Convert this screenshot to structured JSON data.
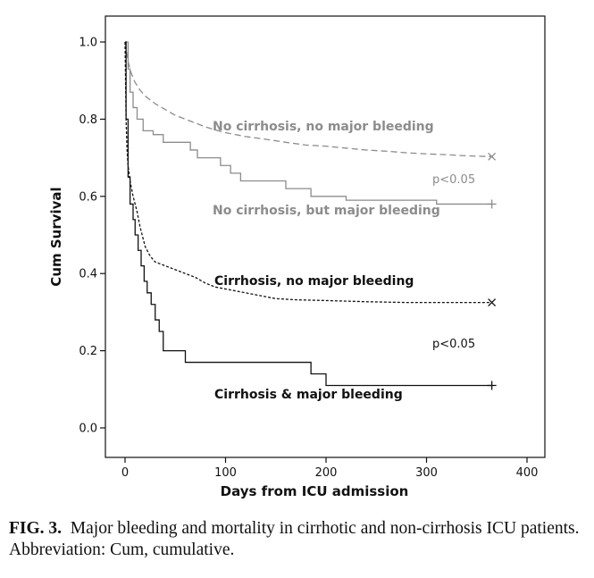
{
  "chart_data": {
    "type": "line",
    "ylabel": "Cum Survival",
    "xlabel": "Days from ICU admission",
    "xlim": [
      0,
      400
    ],
    "ylim": [
      0,
      1.0
    ],
    "x_ticks": [
      "0",
      "100",
      "200",
      "300",
      "400"
    ],
    "y_ticks": [
      "0.0",
      "0.2",
      "0.4",
      "0.6",
      "0.8",
      "1.0"
    ],
    "grid": false,
    "series": [
      {
        "name": "No cirrhosis, no major bleeding",
        "color": "#8c8c8c",
        "dash": "dashed",
        "end_marker": "×",
        "points": [
          [
            0,
            1.0
          ],
          [
            1,
            0.98
          ],
          [
            3,
            0.95
          ],
          [
            6,
            0.92
          ],
          [
            10,
            0.895
          ],
          [
            15,
            0.875
          ],
          [
            20,
            0.86
          ],
          [
            30,
            0.84
          ],
          [
            40,
            0.825
          ],
          [
            50,
            0.81
          ],
          [
            60,
            0.8
          ],
          [
            70,
            0.79
          ],
          [
            80,
            0.78
          ],
          [
            90,
            0.772
          ],
          [
            100,
            0.765
          ],
          [
            120,
            0.755
          ],
          [
            140,
            0.748
          ],
          [
            160,
            0.74
          ],
          [
            180,
            0.733
          ],
          [
            200,
            0.73
          ],
          [
            220,
            0.725
          ],
          [
            240,
            0.72
          ],
          [
            260,
            0.717
          ],
          [
            280,
            0.713
          ],
          [
            300,
            0.71
          ],
          [
            320,
            0.708
          ],
          [
            340,
            0.705
          ],
          [
            365,
            0.703
          ]
        ]
      },
      {
        "name": "No cirrhosis, but major bleeding",
        "color": "#8c8c8c",
        "dash": "solid",
        "end_marker": "+",
        "points": [
          [
            0,
            1.0
          ],
          [
            3,
            1.0
          ],
          [
            3,
            0.93
          ],
          [
            5,
            0.93
          ],
          [
            5,
            0.87
          ],
          [
            8,
            0.87
          ],
          [
            8,
            0.83
          ],
          [
            12,
            0.83
          ],
          [
            12,
            0.8
          ],
          [
            18,
            0.8
          ],
          [
            18,
            0.77
          ],
          [
            28,
            0.77
          ],
          [
            28,
            0.76
          ],
          [
            38,
            0.76
          ],
          [
            38,
            0.74
          ],
          [
            65,
            0.74
          ],
          [
            65,
            0.72
          ],
          [
            72,
            0.72
          ],
          [
            72,
            0.7
          ],
          [
            95,
            0.7
          ],
          [
            95,
            0.68
          ],
          [
            105,
            0.68
          ],
          [
            105,
            0.66
          ],
          [
            115,
            0.66
          ],
          [
            115,
            0.64
          ],
          [
            160,
            0.64
          ],
          [
            160,
            0.62
          ],
          [
            185,
            0.62
          ],
          [
            185,
            0.6
          ],
          [
            220,
            0.6
          ],
          [
            220,
            0.59
          ],
          [
            310,
            0.59
          ],
          [
            310,
            0.58
          ],
          [
            365,
            0.58
          ]
        ]
      },
      {
        "name": "Cirrhosis, no major bleeding",
        "color": "#111111",
        "dash": "dotted",
        "end_marker": "×",
        "points": [
          [
            0,
            1.0
          ],
          [
            1,
            0.8
          ],
          [
            2,
            0.72
          ],
          [
            3,
            0.68
          ],
          [
            5,
            0.64
          ],
          [
            8,
            0.6
          ],
          [
            12,
            0.56
          ],
          [
            15,
            0.52
          ],
          [
            20,
            0.47
          ],
          [
            25,
            0.445
          ],
          [
            30,
            0.43
          ],
          [
            40,
            0.42
          ],
          [
            50,
            0.41
          ],
          [
            60,
            0.4
          ],
          [
            70,
            0.39
          ],
          [
            80,
            0.375
          ],
          [
            90,
            0.365
          ],
          [
            110,
            0.355
          ],
          [
            130,
            0.345
          ],
          [
            150,
            0.335
          ],
          [
            170,
            0.332
          ],
          [
            200,
            0.33
          ],
          [
            240,
            0.327
          ],
          [
            280,
            0.325
          ],
          [
            320,
            0.325
          ],
          [
            365,
            0.325
          ]
        ]
      },
      {
        "name": "Cirrhosis & major bleeding",
        "color": "#111111",
        "dash": "solid",
        "end_marker": "+",
        "points": [
          [
            0,
            1.0
          ],
          [
            1,
            1.0
          ],
          [
            1,
            0.8
          ],
          [
            3,
            0.8
          ],
          [
            3,
            0.65
          ],
          [
            5,
            0.65
          ],
          [
            5,
            0.58
          ],
          [
            8,
            0.58
          ],
          [
            8,
            0.54
          ],
          [
            10,
            0.54
          ],
          [
            10,
            0.5
          ],
          [
            13,
            0.5
          ],
          [
            13,
            0.46
          ],
          [
            16,
            0.46
          ],
          [
            16,
            0.42
          ],
          [
            19,
            0.42
          ],
          [
            19,
            0.38
          ],
          [
            22,
            0.38
          ],
          [
            22,
            0.35
          ],
          [
            26,
            0.35
          ],
          [
            26,
            0.32
          ],
          [
            30,
            0.32
          ],
          [
            30,
            0.28
          ],
          [
            34,
            0.28
          ],
          [
            34,
            0.25
          ],
          [
            38,
            0.25
          ],
          [
            38,
            0.2
          ],
          [
            60,
            0.2
          ],
          [
            60,
            0.17
          ],
          [
            185,
            0.17
          ],
          [
            185,
            0.14
          ],
          [
            200,
            0.14
          ],
          [
            200,
            0.11
          ],
          [
            365,
            0.11
          ]
        ]
      }
    ],
    "annotations": [
      {
        "text": "p<0.05",
        "between": [
          "No cirrhosis, no major bleeding",
          "No cirrhosis, but major bleeding"
        ]
      },
      {
        "text": "p<0.05",
        "between": [
          "Cirrhosis, no major bleeding",
          "Cirrhosis & major bleeding"
        ]
      }
    ]
  },
  "caption": {
    "label": "FIG. 3.",
    "text": "Major bleeding and mortality in cirrhotic and non-cirrhosis ICU patients. Abbreviation: Cum, cumulative."
  }
}
